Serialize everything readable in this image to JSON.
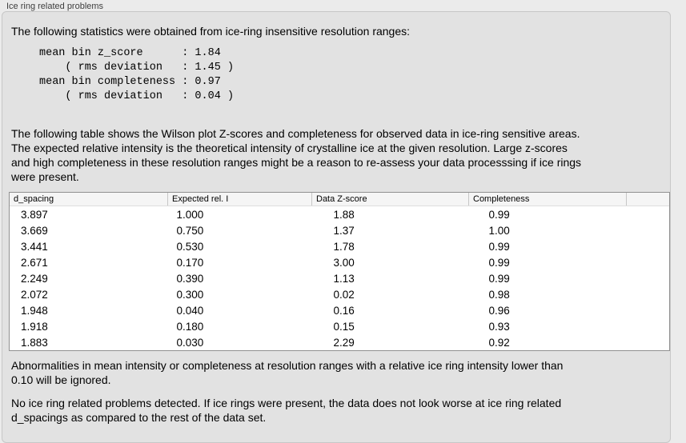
{
  "panel": {
    "title": "Ice ring related problems",
    "stats_intro": "The following statistics were obtained from ice-ring insensitive resolution ranges:",
    "stats_block": "mean bin z_score      : 1.84\n    ( rms deviation   : 1.45 )\nmean bin completeness : 0.97\n    ( rms deviation   : 0.04 )",
    "stats": {
      "mean_bin_z_score": "1.84",
      "z_score_rms_deviation": "1.45",
      "mean_bin_completeness": "0.97",
      "completeness_rms_deviation": "0.04"
    },
    "table_description": "The following table shows the Wilson plot Z-scores and completeness for observed data in ice-ring sensitive areas.\nThe expected relative intensity is the theoretical intensity of crystalline ice at the given resolution. Large z-scores\nand high completeness in these resolution ranges might be a reason to re-assess your data processsing if ice rings\nwere present.",
    "table": {
      "columns": [
        "d_spacing",
        "Expected rel. I",
        "Data Z-score",
        "Completeness"
      ],
      "rows": [
        [
          "3.897",
          "1.000",
          "1.88",
          "0.99"
        ],
        [
          "3.669",
          "0.750",
          "1.37",
          "1.00"
        ],
        [
          "3.441",
          "0.530",
          "1.78",
          "0.99"
        ],
        [
          "2.671",
          "0.170",
          "3.00",
          "0.99"
        ],
        [
          "2.249",
          "0.390",
          "1.13",
          "0.99"
        ],
        [
          "2.072",
          "0.300",
          "0.02",
          "0.98"
        ],
        [
          "1.948",
          "0.040",
          "0.16",
          "0.96"
        ],
        [
          "1.918",
          "0.180",
          "0.15",
          "0.93"
        ],
        [
          "1.883",
          "0.030",
          "2.29",
          "0.92"
        ]
      ]
    },
    "ignore_note": "Abnormalities in mean intensity or completeness at resolution ranges with a relative ice ring intensity lower than\n0.10 will be ignored.",
    "conclusion": "No ice ring related problems detected. If ice rings were present, the data does not look worse at ice ring related\nd_spacings as compared to the rest of the data set."
  },
  "chart_data": {
    "type": "table",
    "title": "Ice ring related problems",
    "columns": [
      "d_spacing",
      "Expected rel. I",
      "Data Z-score",
      "Completeness"
    ],
    "rows": [
      [
        3.897,
        1.0,
        1.88,
        0.99
      ],
      [
        3.669,
        0.75,
        1.37,
        1.0
      ],
      [
        3.441,
        0.53,
        1.78,
        0.99
      ],
      [
        2.671,
        0.17,
        3.0,
        0.99
      ],
      [
        2.249,
        0.39,
        1.13,
        0.99
      ],
      [
        2.072,
        0.3,
        0.02,
        0.98
      ],
      [
        1.948,
        0.04,
        0.16,
        0.96
      ],
      [
        1.918,
        0.18,
        0.15,
        0.93
      ],
      [
        1.883,
        0.03,
        2.29,
        0.92
      ]
    ]
  },
  "colors": {
    "page_bg": "#ebebeb",
    "panel_bg": "#e2e2e2",
    "panel_border": "#c7c7c7",
    "table_bg": "#ffffff",
    "table_border": "#919191",
    "header_bg": "#f5f5f5",
    "text": "#000000"
  }
}
